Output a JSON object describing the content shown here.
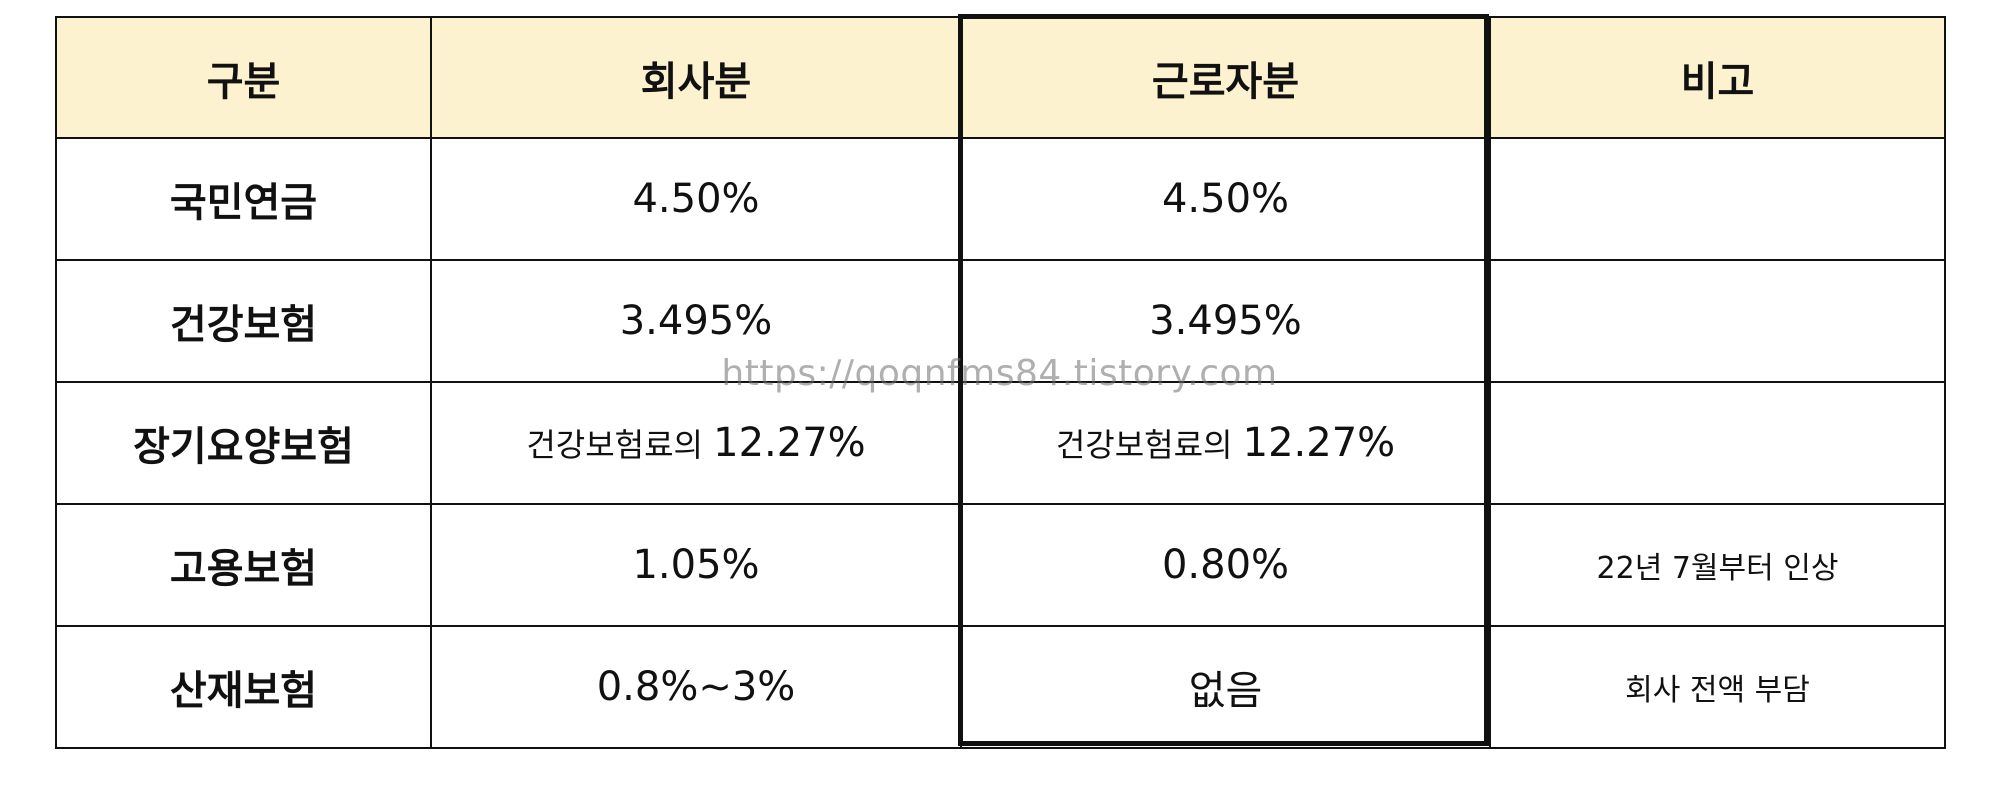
{
  "table": {
    "headers": [
      "구분",
      "회사분",
      "근로자분",
      "비고"
    ],
    "rows": [
      {
        "label": "국민연금",
        "company": "4.50%",
        "worker": "4.50%",
        "note": ""
      },
      {
        "label": "건강보험",
        "company": "3.495%",
        "worker": "3.495%",
        "note": ""
      },
      {
        "label": "장기요양보험",
        "company_prefix": "건강보험료의",
        "company_value": "12.27%",
        "worker_prefix": "건강보험료의",
        "worker_value": "12.27%",
        "note": ""
      },
      {
        "label": "고용보험",
        "company": "1.05%",
        "worker": "0.80%",
        "note": "22년 7월부터 인상"
      },
      {
        "label": "산재보험",
        "company": "0.8%~3%",
        "worker": "없음",
        "note": "회사 전액 부담"
      }
    ]
  },
  "watermark": "https://qoqnfms84.tistory.com",
  "colors": {
    "header_bg": "#fdf2d0",
    "border": "#111111"
  }
}
